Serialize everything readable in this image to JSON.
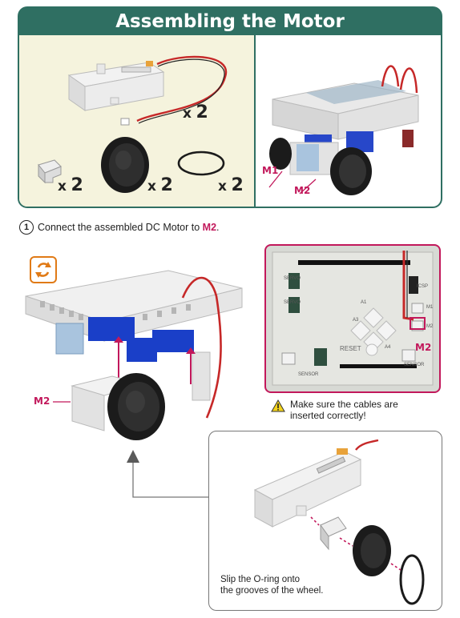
{
  "header": {
    "title": "Assembling the Motor"
  },
  "parts": [
    {
      "name": "DC Motor",
      "x_label": "x",
      "count": "2"
    },
    {
      "name": "Motor mount",
      "x_label": "x",
      "count": "2"
    },
    {
      "name": "Wheel",
      "x_label": "x",
      "count": "2"
    },
    {
      "name": "O-ring",
      "x_label": "x",
      "count": "2"
    }
  ],
  "robot_labels": {
    "m1": "M1",
    "m2": "M2"
  },
  "step": {
    "number": "1",
    "text_before": "Connect the assembled DC Motor to ",
    "port": "M2",
    "text_after": "."
  },
  "main_label": "M2",
  "board": {
    "port_label": "M2",
    "silk": {
      "servo1": "SERVO",
      "servo2": "SERVO",
      "icsp": "ICSP",
      "reset": "RESET",
      "m1": "M1",
      "m2": "M2",
      "sensor_left": "SENSOR",
      "sensor_right": "SENSOR",
      "pin_a": "A1",
      "pin_b": "A3",
      "pin_c": "A4"
    }
  },
  "warning": {
    "line1": "Make sure the cables are",
    "line2": "inserted correctly!"
  },
  "detail": {
    "line1": "Slip the O-ring onto",
    "line2": "the grooves of the wheel."
  },
  "colors": {
    "header": "#2f6f62",
    "accent": "#c2185b",
    "parts_bg": "#f5f3dd",
    "rotate_icon": "#e07a16",
    "motor_blue": "#1a3fc8"
  }
}
